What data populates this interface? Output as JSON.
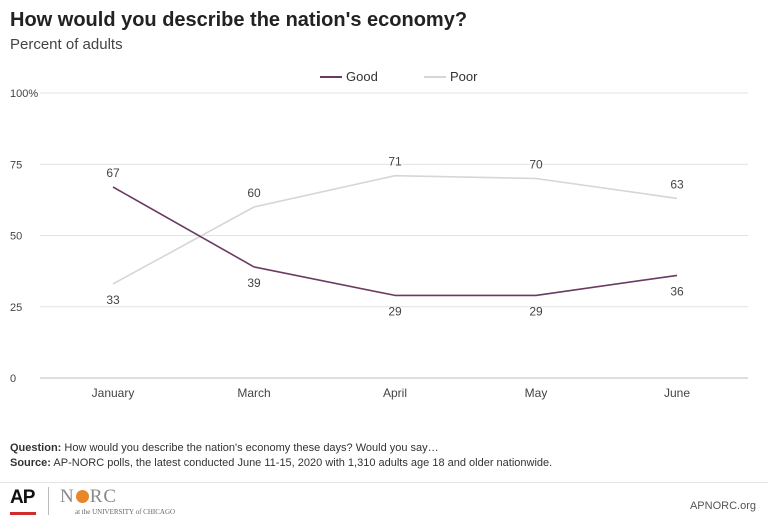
{
  "chart_data": {
    "type": "line",
    "title": "How would you describe the nation's economy?",
    "subtitle": "Percent of adults",
    "categories": [
      "January",
      "March",
      "April",
      "May",
      "June"
    ],
    "series": [
      {
        "name": "Good",
        "values": [
          67,
          39,
          29,
          29,
          36
        ],
        "color": "#6b3a62"
      },
      {
        "name": "Poor",
        "values": [
          33,
          60,
          71,
          70,
          63
        ],
        "color": "#d6d6d6"
      }
    ],
    "ylim": [
      0,
      100
    ],
    "yticks": [
      0,
      25,
      50,
      75,
      100
    ],
    "ytick_labels": [
      "0",
      "25",
      "50",
      "75",
      "100%"
    ],
    "grid": true,
    "legend_position": "top-center"
  },
  "notes": {
    "question_label": "Question:",
    "question_text": " How would you describe the nation's economy these days? Would you say…",
    "source_label": "Source:",
    "source_text": " AP-NORC polls, the latest conducted June 11-15, 2020 with 1,310 adults age 18 and older nationwide."
  },
  "footer": {
    "ap_logo": "AP",
    "norc_n": "N",
    "norc_rc": "RC",
    "norc_sub": "at the UNIVERSITY of CHICAGO",
    "site": "APNORC.org"
  }
}
